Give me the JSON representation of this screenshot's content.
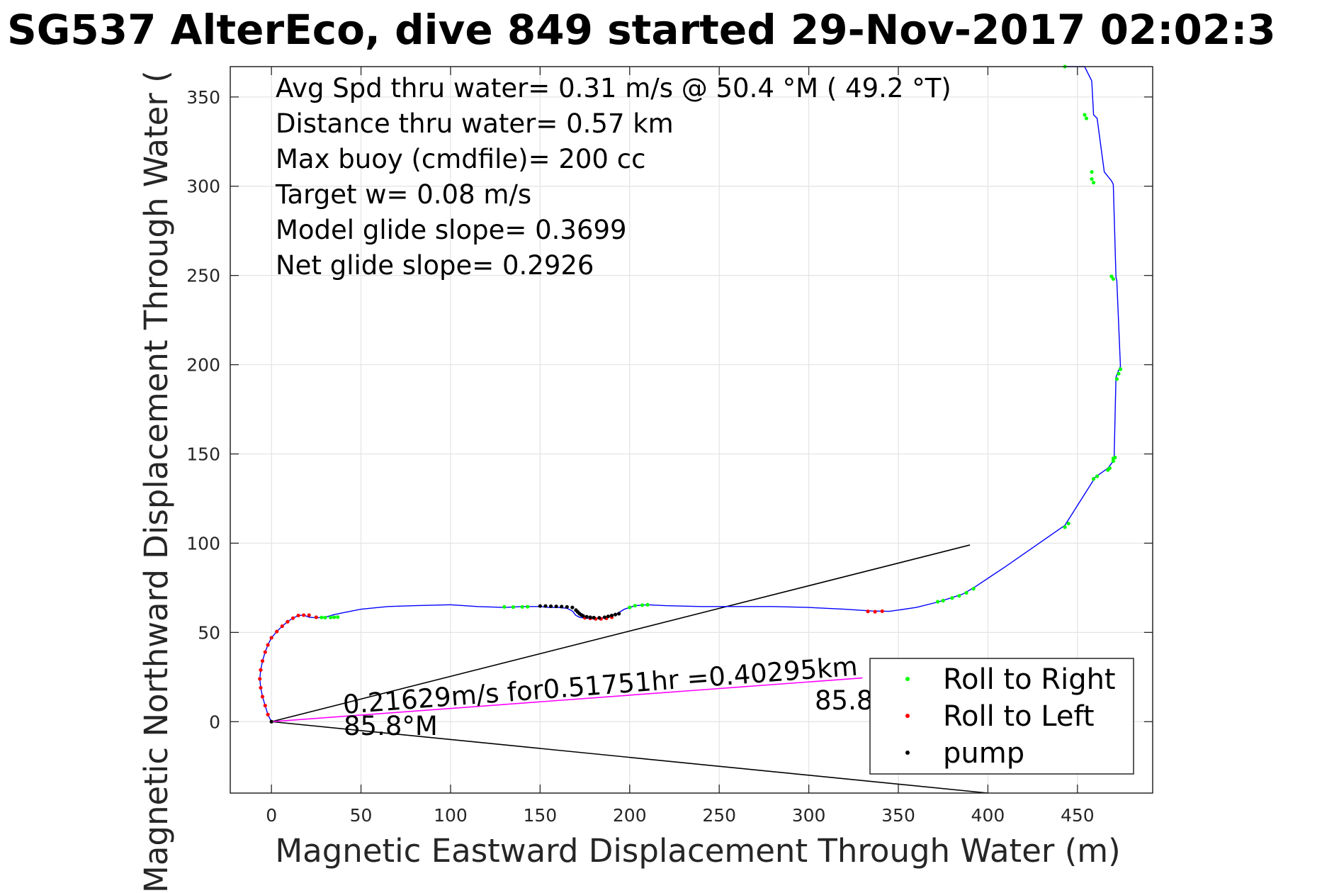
{
  "chart_data": {
    "type": "line",
    "title": "SG537 AlterEco, dive 849 started 29-Nov-2017 02:02:3",
    "xlabel": "Magnetic Eastward Displacement Through Water (m)",
    "ylabel": "Magnetic Northward Displacement Through Water (",
    "xlim": [
      -23,
      492
    ],
    "ylim": [
      -40,
      367
    ],
    "xticks": [
      0,
      50,
      100,
      150,
      200,
      250,
      300,
      350,
      400,
      450
    ],
    "yticks": [
      0,
      50,
      100,
      150,
      200,
      250,
      300,
      350
    ],
    "grid": true,
    "info_lines": [
      "Avg Spd thru water=  0.31 m/s @  50.4 °M ( 49.2 °T)",
      "Distance thru water=  0.57 km",
      "Max buoy (cmdfile)= 200 cc",
      "Target w= 0.08 m/s",
      "Model glide slope= 0.3699",
      "Net glide slope= 0.2926"
    ],
    "annotations": {
      "current_text": "0.21629m/s for0.51751hr =0.40295km",
      "heading_near": "85.8°M",
      "heading_far": "85.8°M"
    },
    "track": {
      "name": "track",
      "color": "#0000ff",
      "x": [
        0,
        -2,
        -3.5,
        -5,
        -6,
        -6.5,
        -6,
        -5,
        -3.5,
        -2,
        0,
        3,
        6,
        9,
        12,
        15,
        18,
        21,
        25,
        30,
        35,
        40,
        50,
        65,
        80,
        100,
        115,
        130,
        140,
        150,
        155,
        160,
        165,
        168,
        170,
        172,
        175,
        180,
        185,
        190,
        193,
        197,
        203,
        210,
        220,
        240,
        260,
        280,
        300,
        320,
        335,
        345,
        360,
        372,
        380,
        386,
        392,
        410,
        443,
        460,
        467,
        470,
        470.5,
        471.5,
        473,
        474,
        472,
        471.5,
        470,
        469,
        465,
        461,
        459,
        458,
        454,
        445,
        443
      ],
      "y": [
        0,
        4,
        9,
        14,
        19,
        24,
        29,
        34,
        39,
        43,
        47,
        50.5,
        53.5,
        56,
        58,
        59.5,
        59.7,
        58.5,
        58.2,
        58.5,
        60,
        61,
        63,
        64.5,
        65,
        65.5,
        64.5,
        64,
        64.5,
        64.5,
        64,
        64,
        63.5,
        62,
        59.5,
        58.5,
        58,
        57.6,
        58.2,
        59.5,
        60.5,
        63,
        65,
        65.5,
        65,
        64.5,
        64.5,
        64.5,
        64,
        63,
        62,
        61.8,
        64,
        67,
        69.5,
        71.5,
        75,
        87,
        110,
        137,
        142,
        146,
        148,
        193,
        197,
        199,
        247,
        249,
        301,
        303,
        308,
        338,
        340,
        359,
        367,
        367,
        367
      ]
    },
    "current_line": {
      "color": "#ff00ff",
      "x": [
        0,
        330
      ],
      "y": [
        0,
        24.5
      ]
    },
    "wedge_lines": [
      {
        "color": "#000000",
        "x": [
          0,
          390
        ],
        "y": [
          0,
          99
        ]
      },
      {
        "color": "#000000",
        "x": [
          0,
          400
        ],
        "y": [
          0,
          -40
        ]
      }
    ],
    "markers": [
      {
        "name": "Roll to Right",
        "color": "#00ff00",
        "x": [
          25,
          28,
          30,
          33,
          35,
          37,
          130,
          135,
          140,
          143,
          200,
          203,
          207,
          210,
          372,
          375,
          380,
          384,
          388,
          392,
          443,
          445,
          459,
          461,
          467,
          468,
          470,
          470,
          471,
          472,
          473,
          474,
          470,
          469,
          459,
          458,
          458,
          455,
          454,
          443
        ],
        "y": [
          58.5,
          58.4,
          58.3,
          58.4,
          58.5,
          58.6,
          64.3,
          64.2,
          64.3,
          64.4,
          64,
          65,
          65.3,
          65.5,
          67.2,
          67.8,
          69.3,
          70.5,
          72.2,
          74.5,
          109,
          111,
          136,
          137.5,
          141,
          142,
          146,
          147.5,
          148,
          192,
          195,
          197.5,
          248,
          249.5,
          302,
          304,
          308,
          338,
          340,
          367
        ]
      },
      {
        "color": "#ff0000",
        "x": [
          -2,
          -3.5,
          -5,
          -6,
          -6.5,
          -6,
          -5,
          -3.5,
          -2,
          0,
          3,
          6,
          9,
          12,
          15,
          18,
          21,
          25,
          175,
          178,
          181,
          184,
          187,
          190,
          333,
          337,
          341
        ],
        "y": [
          4,
          9,
          14,
          19,
          24,
          29,
          34,
          39,
          43,
          47,
          50.5,
          53.5,
          56,
          58,
          59.5,
          59.7,
          59.7,
          58.5,
          58.2,
          57.9,
          57.6,
          57.6,
          57.9,
          58.5,
          61.8,
          61.6,
          61.9
        ]
      },
      {
        "name": "pump",
        "color": "#000000",
        "x": [
          0,
          150,
          153,
          156,
          159,
          162,
          165,
          168,
          170,
          171,
          172,
          173,
          174,
          176,
          178,
          180,
          183,
          186,
          188,
          190,
          192,
          194
        ],
        "y": [
          0,
          64.8,
          64.8,
          64.7,
          64.6,
          64.5,
          64.3,
          64,
          62.5,
          61.5,
          60.5,
          59.8,
          59.3,
          58.8,
          58.5,
          58.3,
          58.2,
          58.5,
          59,
          59.5,
          60,
          60.5
        ]
      }
    ],
    "legend": {
      "placement": "bottom-right",
      "entries": [
        "Roll to Right",
        "Roll to Left",
        "pump"
      ]
    }
  }
}
